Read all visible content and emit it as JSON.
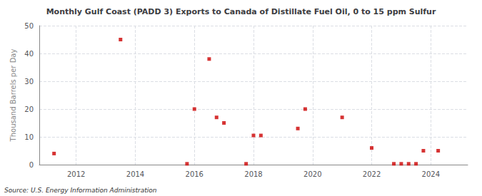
{
  "chart_data": {
    "type": "scatter",
    "title": "Monthly Gulf Coast (PADD 3) Exports to Canada of Distillate Fuel Oil, 0 to 15 ppm Sulfur",
    "ylabel": "Thousand Barrels per Day",
    "source": "Source: U.S. Energy Information Administration",
    "color": "#cc0000",
    "marker": "square",
    "grid": true,
    "xlim": [
      2010.75,
      2025.25
    ],
    "xticks": [
      2012,
      2014,
      2016,
      2018,
      2020,
      2022,
      2024
    ],
    "ylim": [
      0,
      50
    ],
    "yticks": [
      0,
      10,
      20,
      30,
      40,
      50
    ],
    "x": [
      2011.25,
      2013.5,
      2015.75,
      2016.0,
      2016.5,
      2016.75,
      2017.0,
      2017.75,
      2018.0,
      2018.25,
      2019.5,
      2019.75,
      2021.0,
      2022.0,
      2022.75,
      2023.0,
      2023.25,
      2023.5,
      2023.75,
      2024.25
    ],
    "values": [
      4.0,
      45.0,
      0.3,
      20.0,
      38.0,
      17.0,
      15.0,
      0.3,
      10.5,
      10.5,
      13.0,
      20.0,
      17.0,
      6.0,
      0.3,
      0.3,
      0.3,
      0.3,
      5.0,
      5.0
    ]
  }
}
